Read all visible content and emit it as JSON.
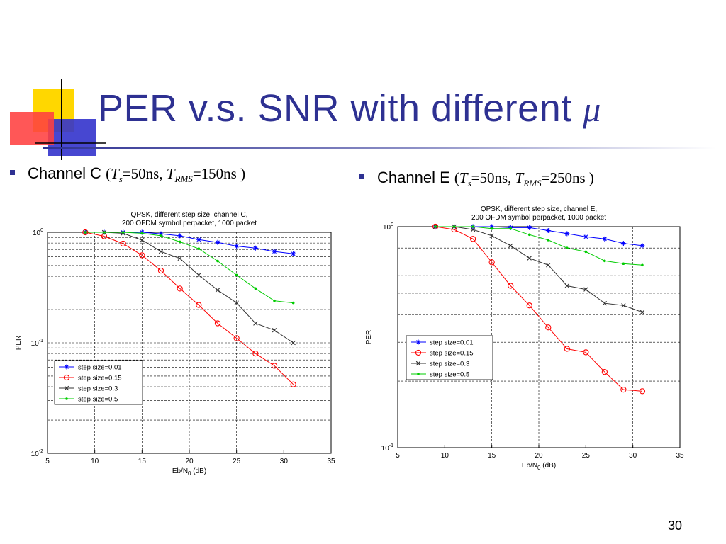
{
  "slide": {
    "title": "PER v.s. SNR with different ",
    "title_symbol": "μ",
    "page_number": "30",
    "bullets": [
      {
        "channel": "Channel C",
        "open": "(",
        "ts": "T",
        "ts_sub": "s",
        "ts_val": "=50ns, ",
        "trms": "T",
        "trms_sub": "RMS",
        "trms_val": "=150ns )"
      },
      {
        "channel": "Channel E",
        "open": "(",
        "ts": "T",
        "ts_sub": "s",
        "ts_val": "=50ns, ",
        "trms": "T",
        "trms_sub": "RMS",
        "trms_val": "=250ns )"
      }
    ],
    "colors": {
      "title": "#2e3192",
      "accent_yellow": "#ffd700",
      "accent_blue": "#3333cc",
      "accent_red": "#ff3b3b"
    }
  },
  "chart_data": [
    {
      "type": "line",
      "title_lines": [
        "QPSK, different step size, channel C,",
        "200 OFDM symbol perpacket, 1000 packet"
      ],
      "xlabel": "Eb/N",
      "xlabel_sub": "0",
      "xlabel_unit": " (dB)",
      "ylabel": "PER",
      "xlim": [
        5,
        35
      ],
      "ylim": [
        0.01,
        1
      ],
      "yscale": "log",
      "x_ticks": [
        5,
        10,
        15,
        20,
        25,
        30,
        35
      ],
      "y_ticks": [
        {
          "v": 1,
          "base": "10",
          "exp": "0"
        },
        {
          "v": 0.1,
          "base": "10",
          "exp": "-1"
        },
        {
          "v": 0.01,
          "base": "10",
          "exp": "-2"
        }
      ],
      "grid": true,
      "legend_position": "bottom-left",
      "series": [
        {
          "name": "step size=0.01",
          "color": "#0000ff",
          "marker": "star",
          "x": [
            9,
            11,
            13,
            15,
            17,
            19,
            21,
            23,
            25,
            27,
            29,
            31
          ],
          "y": [
            1.0,
            1.0,
            1.0,
            1.0,
            0.97,
            0.93,
            0.86,
            0.81,
            0.75,
            0.72,
            0.67,
            0.64
          ]
        },
        {
          "name": "step size=0.15",
          "color": "#ff0000",
          "marker": "circle",
          "x": [
            9,
            11,
            13,
            15,
            17,
            19,
            21,
            23,
            25,
            27,
            29,
            31
          ],
          "y": [
            1.0,
            0.92,
            0.79,
            0.62,
            0.45,
            0.31,
            0.22,
            0.15,
            0.11,
            0.08,
            0.062,
            0.042
          ]
        },
        {
          "name": "step size=0.3",
          "color": "#333333",
          "marker": "x",
          "x": [
            9,
            11,
            13,
            15,
            17,
            19,
            21,
            23,
            25,
            27,
            29,
            31
          ],
          "y": [
            1.0,
            1.0,
            0.98,
            0.85,
            0.67,
            0.58,
            0.41,
            0.3,
            0.23,
            0.15,
            0.13,
            0.1
          ]
        },
        {
          "name": "step size=0.5",
          "color": "#00cc00",
          "marker": "dot",
          "x": [
            9,
            11,
            13,
            15,
            17,
            19,
            21,
            23,
            25,
            27,
            29,
            31
          ],
          "y": [
            1.0,
            1.0,
            1.0,
            0.98,
            0.93,
            0.82,
            0.71,
            0.55,
            0.41,
            0.31,
            0.24,
            0.23
          ]
        }
      ]
    },
    {
      "type": "line",
      "title_lines": [
        "QPSK, different step size, channel E,",
        "200 OFDM symbol perpacket, 1000 packet"
      ],
      "xlabel": "Eb/N",
      "xlabel_sub": "0",
      "xlabel_unit": " (dB)",
      "ylabel": "PER",
      "xlim": [
        5,
        35
      ],
      "ylim": [
        0.1,
        1
      ],
      "yscale": "log",
      "x_ticks": [
        5,
        10,
        15,
        20,
        25,
        30,
        35
      ],
      "y_ticks": [
        {
          "v": 1,
          "base": "10",
          "exp": "0"
        },
        {
          "v": 0.1,
          "base": "10",
          "exp": "-1"
        }
      ],
      "grid": true,
      "legend_position": "middle-left",
      "series": [
        {
          "name": "step size=0.01",
          "color": "#0000ff",
          "marker": "star",
          "x": [
            9,
            11,
            13,
            15,
            17,
            19,
            21,
            23,
            25,
            27,
            29,
            31
          ],
          "y": [
            1.0,
            1.0,
            1.0,
            1.0,
            0.99,
            0.99,
            0.96,
            0.93,
            0.9,
            0.88,
            0.84,
            0.82
          ]
        },
        {
          "name": "step size=0.15",
          "color": "#ff0000",
          "marker": "circle",
          "x": [
            9,
            11,
            13,
            15,
            17,
            19,
            21,
            23,
            25,
            27,
            29,
            31
          ],
          "y": [
            1.0,
            0.97,
            0.88,
            0.69,
            0.54,
            0.44,
            0.35,
            0.28,
            0.27,
            0.22,
            0.183,
            0.18
          ]
        },
        {
          "name": "step size=0.3",
          "color": "#333333",
          "marker": "x",
          "x": [
            9,
            11,
            13,
            15,
            17,
            19,
            21,
            23,
            25,
            27,
            29,
            31
          ],
          "y": [
            1.0,
            1.0,
            0.97,
            0.91,
            0.82,
            0.72,
            0.67,
            0.54,
            0.52,
            0.45,
            0.44,
            0.41
          ]
        },
        {
          "name": "step size=0.5",
          "color": "#00cc00",
          "marker": "dot",
          "x": [
            9,
            11,
            13,
            15,
            17,
            19,
            21,
            23,
            25,
            27,
            29,
            31
          ],
          "y": [
            1.0,
            1.0,
            1.0,
            0.98,
            0.98,
            0.92,
            0.87,
            0.8,
            0.77,
            0.7,
            0.68,
            0.67
          ]
        }
      ]
    }
  ]
}
